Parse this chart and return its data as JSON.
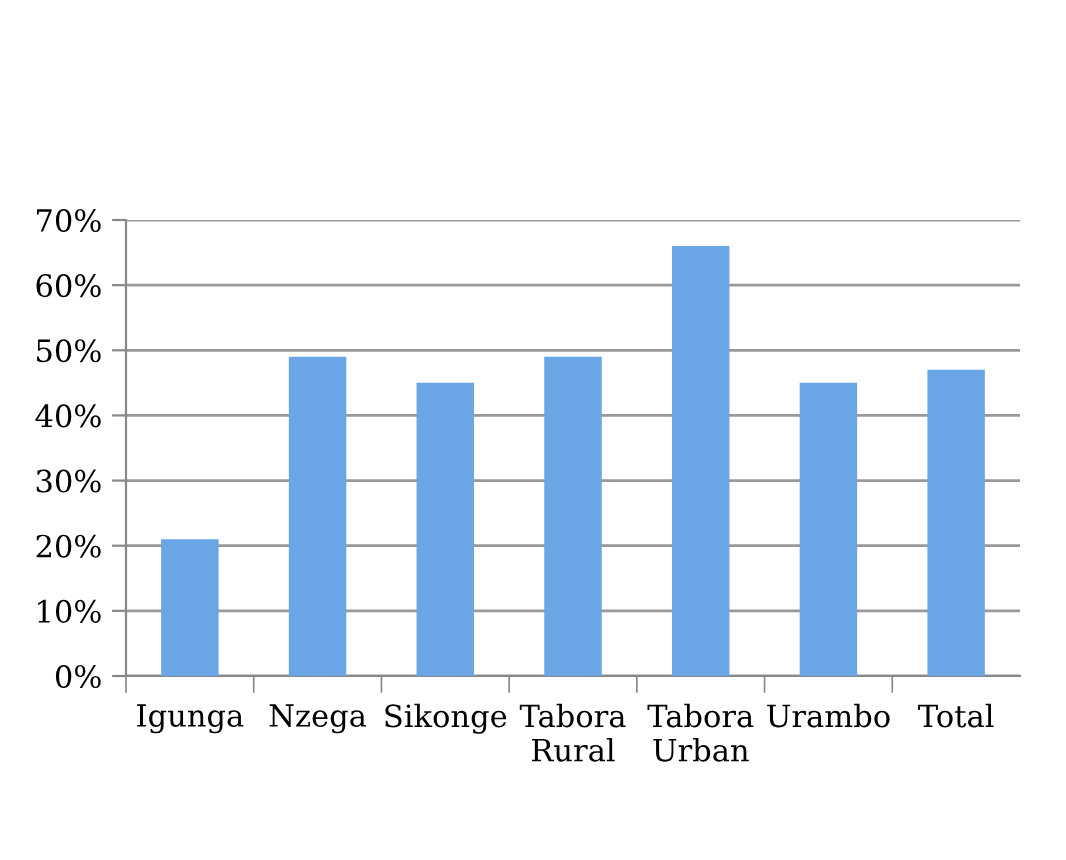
{
  "chart_data": {
    "type": "bar",
    "categories": [
      "Igunga",
      "Nzega",
      "Sikonge",
      "Tabora\nRural",
      "Tabora\nUrban",
      "Urambo",
      "Total"
    ],
    "values": [
      21,
      49,
      45,
      49,
      66,
      45,
      47
    ],
    "color": "#6aa6e6",
    "ylim": [
      0,
      70
    ],
    "yticks": [
      {
        "value": 0,
        "label": "0%"
      },
      {
        "value": 10,
        "label": "10%"
      },
      {
        "value": 20,
        "label": "20%"
      },
      {
        "value": 30,
        "label": "30%"
      },
      {
        "value": 40,
        "label": "40%"
      },
      {
        "value": 50,
        "label": "50%"
      },
      {
        "value": 60,
        "label": "60%"
      },
      {
        "value": 70,
        "label": "70%"
      }
    ],
    "grid": "y",
    "legend": false
  }
}
